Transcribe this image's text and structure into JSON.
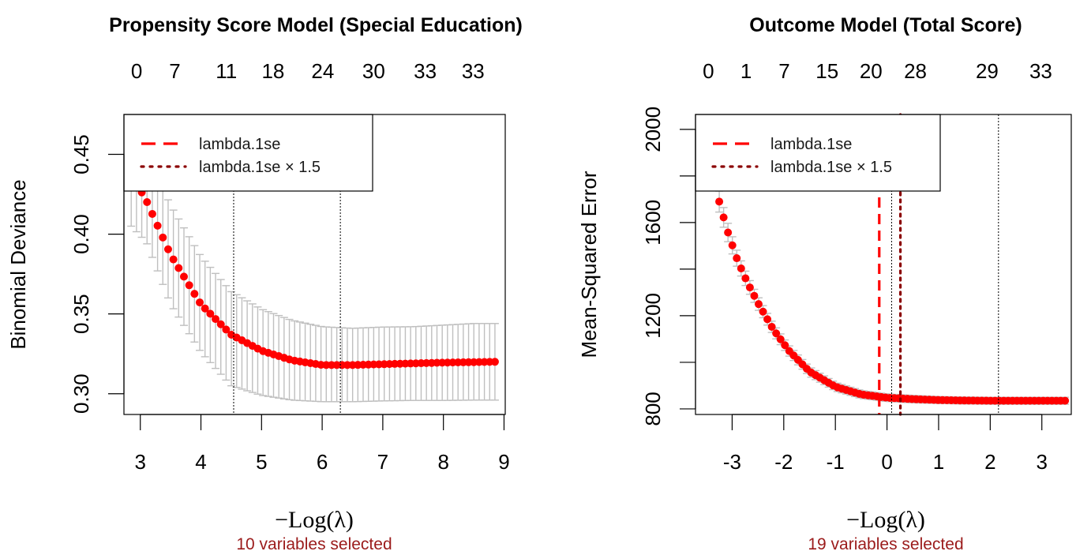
{
  "colors": {
    "point": "#ff0000",
    "errorbar": "#bfbfbf",
    "lambda_1se": "#ff0000",
    "lambda_1se_x15": "#8b0000",
    "reference_line": "#000000",
    "subtitle": "#9b1b1b"
  },
  "chart_data": [
    {
      "type": "scatter",
      "title": "Propensity Score Model (Special Education)",
      "xlabel_prefix": "−",
      "xlabel": "Log(λ)",
      "ylabel": "Binomial Deviance",
      "subtitle": "10 variables selected",
      "xlim": [
        2.73,
        9.02
      ],
      "ylim": [
        0.287,
        0.475
      ],
      "x_ticks": [
        3,
        4,
        5,
        6,
        7,
        8,
        9
      ],
      "x_tick_labels": [
        "3",
        "4",
        "5",
        "6",
        "7",
        "8",
        "9"
      ],
      "y_ticks": [
        0.3,
        0.35,
        0.4,
        0.45
      ],
      "y_tick_labels": [
        "0.30",
        "0.35",
        "0.40",
        "0.45"
      ],
      "top_axis": {
        "positions": [
          2.94,
          3.57,
          4.42,
          5.19,
          6.01,
          6.85,
          7.7,
          8.49
        ],
        "labels": [
          "0",
          "7",
          "11",
          "18",
          "24",
          "30",
          "33",
          "33"
        ]
      },
      "curve": {
        "x_start": 2.85,
        "x_end": 8.85,
        "n_points": 70,
        "knots_x": [
          2.85,
          3.1,
          3.5,
          4.0,
          4.5,
          5.0,
          5.5,
          6.0,
          6.5,
          7.0,
          7.5,
          8.0,
          8.5,
          8.85
        ],
        "knots_mean": [
          0.438,
          0.421,
          0.387,
          0.356,
          0.337,
          0.327,
          0.321,
          0.318,
          0.318,
          0.3185,
          0.319,
          0.3195,
          0.3198,
          0.32
        ],
        "knots_lower": [
          0.405,
          0.395,
          0.356,
          0.326,
          0.305,
          0.299,
          0.296,
          0.295,
          0.295,
          0.2955,
          0.2958,
          0.2958,
          0.296,
          0.296
        ],
        "knots_upper": [
          0.472,
          0.452,
          0.418,
          0.386,
          0.364,
          0.353,
          0.346,
          0.342,
          0.341,
          0.3418,
          0.342,
          0.343,
          0.344,
          0.344
        ]
      },
      "reference_lines": [
        {
          "x": 4.54,
          "style": "dotted",
          "color": "#000000"
        },
        {
          "x": 6.3,
          "style": "dotted",
          "color": "#000000"
        }
      ],
      "legend": {
        "position": "top-left",
        "entries": [
          {
            "label": "lambda.1se",
            "style": "dashed",
            "color": "#ff0000"
          },
          {
            "label": "lambda.1se × 1.5",
            "style": "dotted",
            "color": "#8b0000"
          }
        ]
      }
    },
    {
      "type": "scatter",
      "title": "Outcome Model (Total Score)",
      "xlabel_prefix": "−",
      "xlabel": "Log(λ)",
      "ylabel": "Mean-Squared Error",
      "subtitle": "19 variables selected",
      "xlim": [
        -3.71,
        3.57
      ],
      "ylim": [
        776,
        2064
      ],
      "x_ticks": [
        -3,
        -2,
        -1,
        0,
        1,
        2,
        3
      ],
      "x_tick_labels": [
        "-3",
        "-2",
        "-1",
        "0",
        "1",
        "2",
        "3"
      ],
      "y_ticks": [
        800,
        1000,
        1200,
        1400,
        1600,
        1800,
        2000
      ],
      "y_tick_labels": [
        "800",
        "",
        "1200",
        "",
        "1600",
        "",
        "2000"
      ],
      "top_axis": {
        "positions": [
          -3.46,
          -2.73,
          -1.99,
          -1.16,
          -0.31,
          0.55,
          1.94,
          2.98
        ],
        "labels": [
          "0",
          "1",
          "7",
          "15",
          "20",
          "28",
          "29",
          "33"
        ]
      },
      "curve": {
        "x_start": -3.25,
        "x_end": 3.45,
        "n_points": 80,
        "knots_x": [
          -3.25,
          -3.1,
          -2.9,
          -2.7,
          -2.5,
          -2.2,
          -1.9,
          -1.5,
          -1.0,
          -0.5,
          0.0,
          0.5,
          1.0,
          1.5,
          2.0,
          2.5,
          3.0,
          3.45
        ],
        "knots_mean": [
          1690,
          1570,
          1440,
          1340,
          1255,
          1140,
          1050,
          960,
          895,
          862,
          848,
          842,
          838,
          836,
          835,
          835,
          835,
          835
        ],
        "knots_halfwidth": [
          45,
          40,
          34,
          30,
          27,
          24,
          22,
          20,
          18,
          17,
          16,
          16,
          15,
          15,
          15,
          15,
          15,
          15
        ]
      },
      "reference_lines": [
        {
          "x": -0.15,
          "style": "dashed",
          "color": "#ff0000",
          "label": "lambda.1se"
        },
        {
          "x": 0.09,
          "style": "dotted",
          "color": "#000000"
        },
        {
          "x": 0.26,
          "style": "dotted",
          "color": "#8b0000",
          "label": "lambda.1se × 1.5"
        },
        {
          "x": 2.16,
          "style": "dotted",
          "color": "#000000"
        }
      ],
      "legend": {
        "position": "top-left",
        "entries": [
          {
            "label": "lambda.1se",
            "style": "dashed",
            "color": "#ff0000"
          },
          {
            "label": "lambda.1se × 1.5",
            "style": "dotted",
            "color": "#8b0000"
          }
        ]
      }
    }
  ]
}
